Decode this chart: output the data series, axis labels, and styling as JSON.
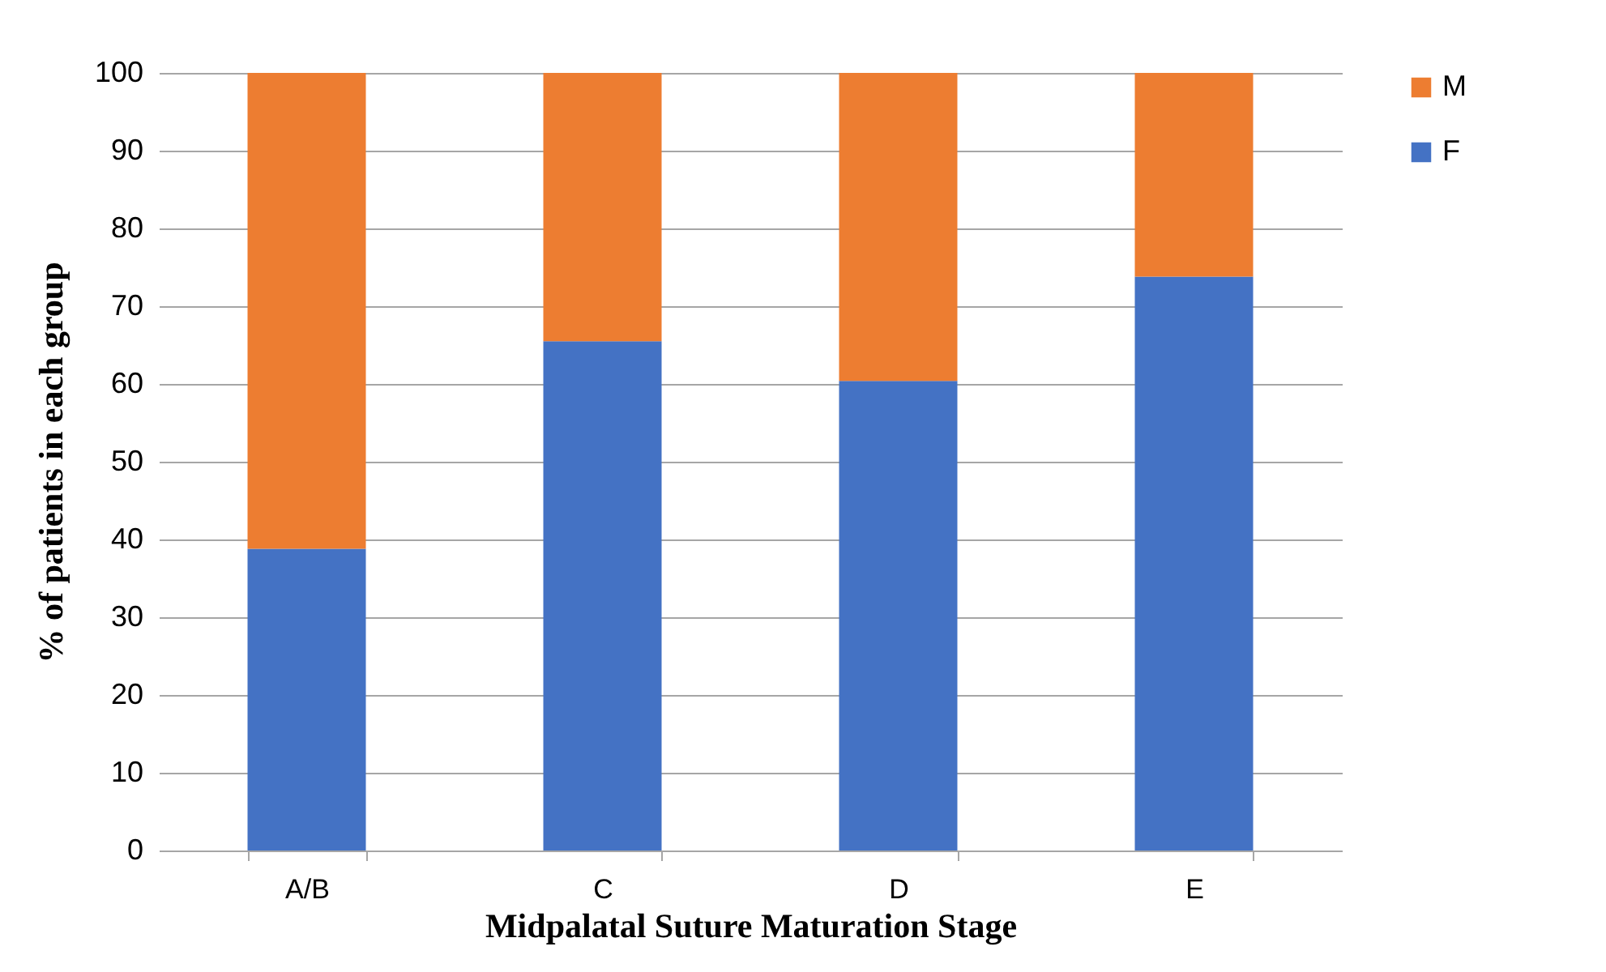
{
  "chart_data": {
    "type": "bar",
    "stacked": true,
    "xlabel": "Midpalatal Suture Maturation Stage",
    "ylabel": "% of patients in each group",
    "categories": [
      "A/B",
      "C",
      "D",
      "E"
    ],
    "series": [
      {
        "name": "F",
        "color": "#4472c4",
        "values": [
          38.8,
          65.5,
          60.4,
          73.8
        ]
      },
      {
        "name": "M",
        "color": "#ed7d31",
        "values": [
          61.2,
          34.5,
          39.6,
          26.2
        ]
      }
    ],
    "ylim": [
      0,
      100
    ],
    "yticks": [
      0,
      10,
      20,
      30,
      40,
      50,
      60,
      70,
      80,
      90,
      100
    ],
    "grid": "y",
    "legend": "right"
  }
}
